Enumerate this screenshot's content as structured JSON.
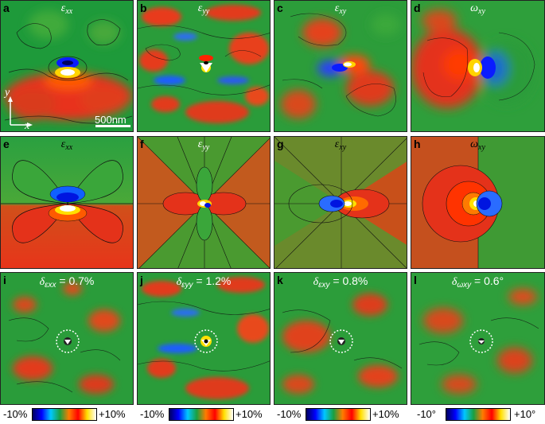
{
  "panels": [
    {
      "letter": "a",
      "sym": "ε",
      "sub": "xx",
      "kind": "exp"
    },
    {
      "letter": "b",
      "sym": "ε",
      "sub": "yy",
      "kind": "exp"
    },
    {
      "letter": "c",
      "sym": "ε",
      "sub": "xy",
      "kind": "exp"
    },
    {
      "letter": "d",
      "sym": "ω",
      "sub": "xy",
      "kind": "exp"
    },
    {
      "letter": "e",
      "sym": "ε",
      "sub": "xx",
      "kind": "theory"
    },
    {
      "letter": "f",
      "sym": "ε",
      "sub": "yy",
      "kind": "theory"
    },
    {
      "letter": "g",
      "sym": "ε",
      "sub": "xy",
      "kind": "theory"
    },
    {
      "letter": "h",
      "sym": "ω",
      "sub": "xy",
      "kind": "theory"
    },
    {
      "letter": "i",
      "sym": "δ",
      "sub": "εxx",
      "value": " = 0.7%",
      "kind": "diff"
    },
    {
      "letter": "j",
      "sym": "δ",
      "sub": "εyy",
      "value": " = 1.2%",
      "kind": "diff"
    },
    {
      "letter": "k",
      "sym": "δ",
      "sub": "εxy",
      "value": " = 0.8%",
      "kind": "diff"
    },
    {
      "letter": "l",
      "sym": "δ",
      "sub": "ωxy",
      "value": " = 0.6°",
      "kind": "diff"
    }
  ],
  "scale_bar": {
    "label": "500nm"
  },
  "axes": {
    "y": "y",
    "x": "x"
  },
  "colorbars": [
    {
      "min": "-10%",
      "max": "+10%"
    },
    {
      "min": "-10%",
      "max": "+10%"
    },
    {
      "min": "-10%",
      "max": "+10%"
    },
    {
      "min": "-10°",
      "max": "+10°"
    }
  ],
  "colors": {
    "negative": "#0000ff",
    "neutral": "#1aa040",
    "positive": "#ff0000",
    "peak": "#ffffff"
  }
}
